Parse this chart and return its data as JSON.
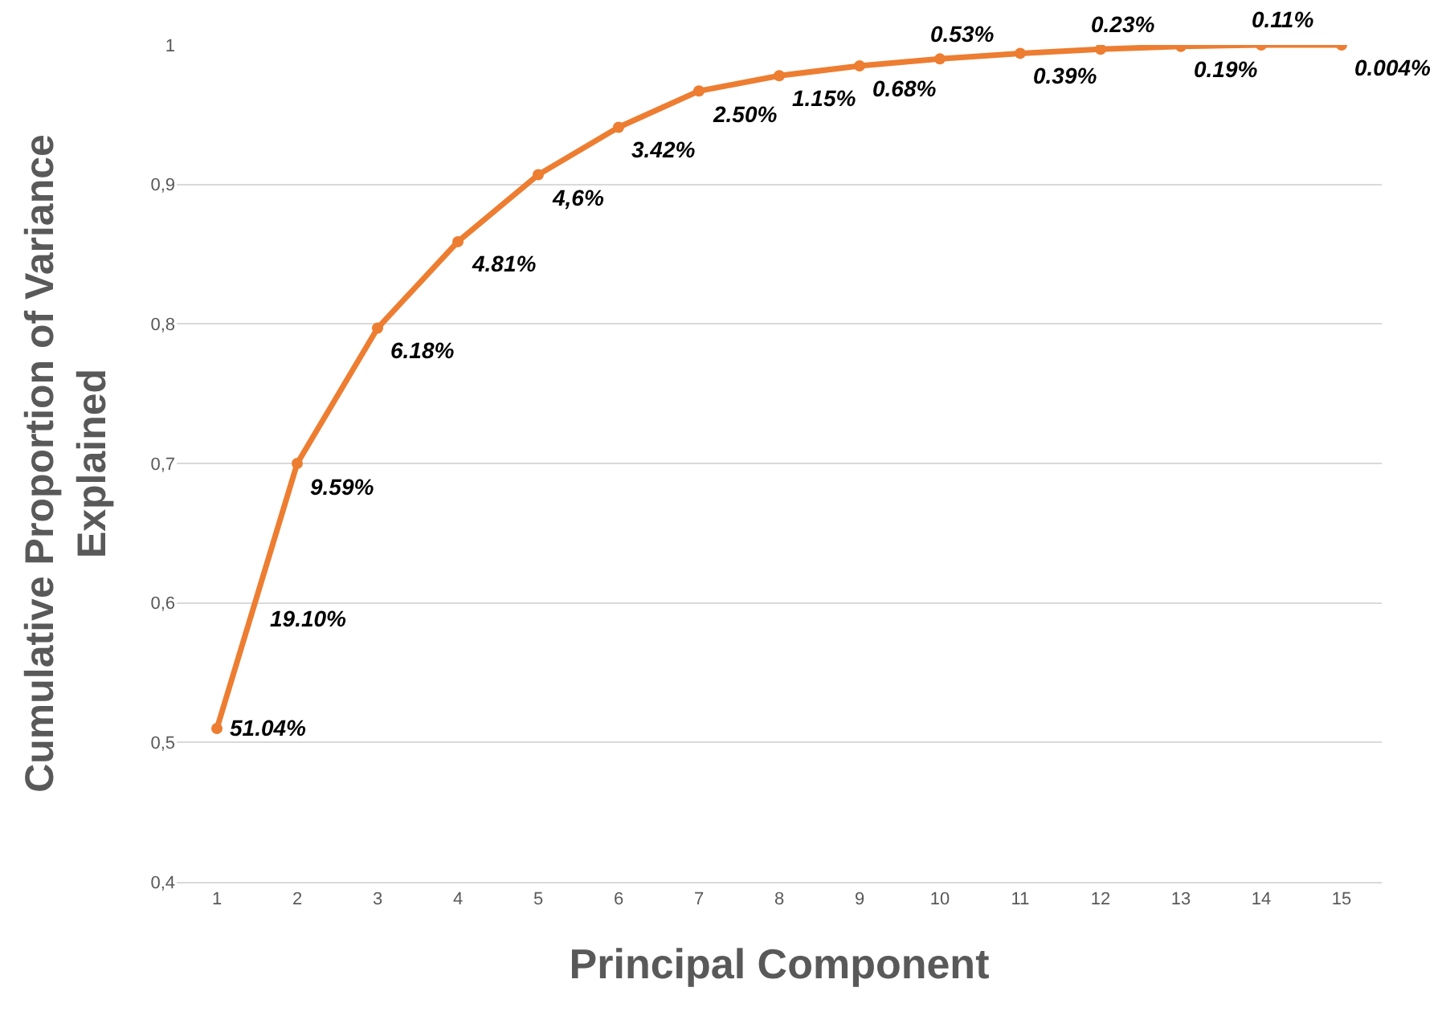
{
  "chart_data": {
    "type": "line",
    "xlabel": "Principal Component",
    "ylabel": "Cumulative Proportion of Variance\nExplained",
    "x": [
      1,
      2,
      3,
      4,
      5,
      6,
      7,
      8,
      9,
      10,
      11,
      12,
      13,
      14,
      15
    ],
    "series": [
      {
        "color": "#ed7d31",
        "values": [
          0.51,
          0.7,
          0.797,
          0.859,
          0.907,
          0.941,
          0.967,
          0.978,
          0.985,
          0.99,
          0.994,
          0.997,
          0.999,
          1.0,
          1.0
        ]
      }
    ],
    "xlim": [
      0.5,
      15.5
    ],
    "xticks": [
      1,
      2,
      3,
      4,
      5,
      6,
      7,
      8,
      9,
      10,
      11,
      12,
      13,
      14,
      15
    ],
    "ylim": [
      0.4,
      1
    ],
    "yticks": [
      {
        "value": 0.4,
        "label": "0,4"
      },
      {
        "value": 0.5,
        "label": "0,5"
      },
      {
        "value": 0.6,
        "label": "0,6"
      },
      {
        "value": 0.7,
        "label": "0,7"
      },
      {
        "value": 0.8,
        "label": "0,8"
      },
      {
        "value": 0.9,
        "label": "0,9"
      },
      1
    ],
    "grid": "y",
    "marker": "circle",
    "line_style": "solid",
    "annotations": [
      {
        "text": "51.04%",
        "x": 1,
        "y": 0.51
      },
      {
        "text": "19.10%",
        "x": 1.5,
        "y": 0.605
      },
      {
        "text": "9.59%",
        "x": 2,
        "y": 0.7
      },
      {
        "text": "6.18%",
        "x": 3,
        "y": 0.797
      },
      {
        "text": "4.81%",
        "x": 4,
        "y": 0.859
      },
      {
        "text": "4,6%",
        "x": 5,
        "y": 0.907
      },
      {
        "text": "3.42%",
        "x": 6,
        "y": 0.941
      },
      {
        "text": "2.50%",
        "x": 7,
        "y": 0.967
      },
      {
        "text": "1.15%",
        "x": 8,
        "y": 0.978
      },
      {
        "text": "0.68%",
        "x": 9,
        "y": 0.985
      },
      {
        "text": "0.53%",
        "x": 10,
        "y": 0.99
      },
      {
        "text": "0.39%",
        "x": 11,
        "y": 0.994
      },
      {
        "text": "0.23%",
        "x": 12,
        "y": 0.997
      },
      {
        "text": "0.19%",
        "x": 13,
        "y": 0.999
      },
      {
        "text": "0.11%",
        "x": 14,
        "y": 1.0
      },
      {
        "text": "0.004%",
        "x": 15,
        "y": 1.0
      }
    ]
  }
}
